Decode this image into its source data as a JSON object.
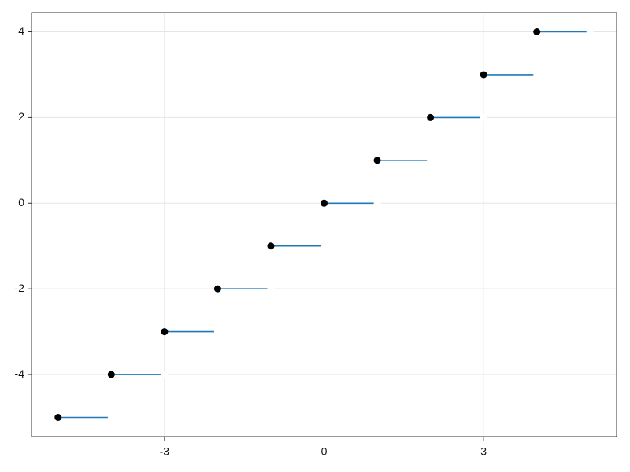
{
  "chart_data": {
    "type": "step",
    "x": [
      -5,
      -4,
      -3,
      -2,
      -1,
      0,
      1,
      2,
      3,
      4
    ],
    "x_end": [
      -4,
      -3,
      -2,
      -1,
      0,
      1,
      2,
      3,
      4,
      5
    ],
    "values": [
      -5,
      -4,
      -3,
      -2,
      -1,
      0,
      1,
      2,
      3,
      4
    ],
    "color": "#1f78b8",
    "point_color": "#000000",
    "end_color": "#ffffff",
    "xlim": [
      -5.5,
      5.5
    ],
    "ylim": [
      -5.45,
      4.45
    ],
    "xticks": [
      -3,
      0,
      3
    ],
    "yticks": [
      -4,
      -2,
      0,
      2,
      4
    ],
    "grid": true
  }
}
